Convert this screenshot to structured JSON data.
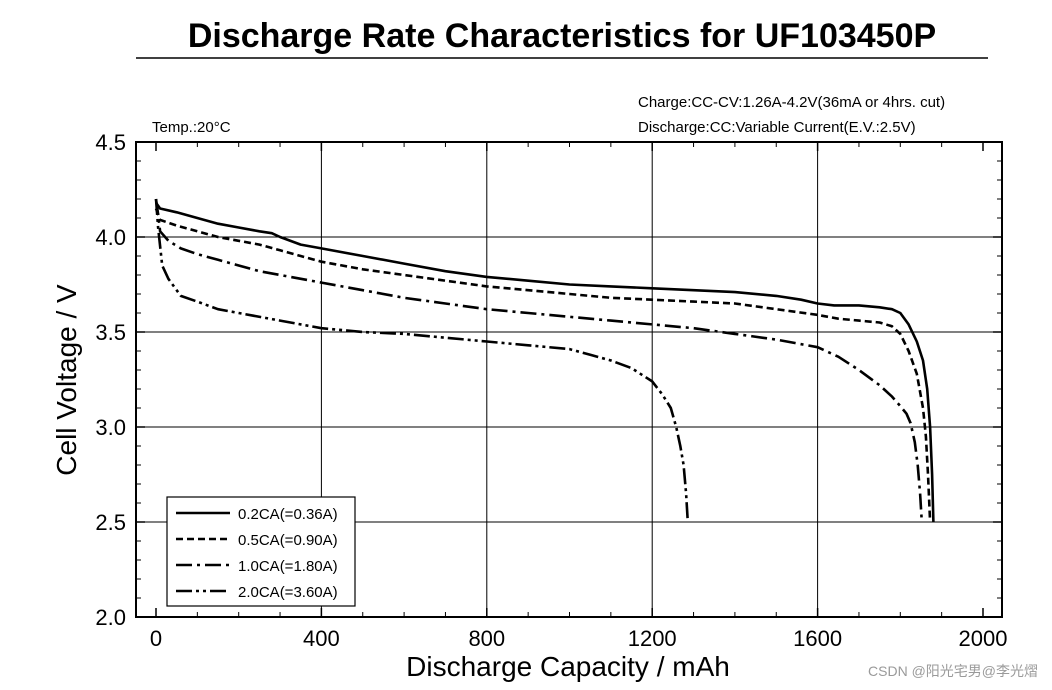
{
  "chart_data": {
    "type": "line",
    "title": "Discharge Rate Characteristics for UF103450P",
    "xlabel": "Discharge  Capacity  /  mAh",
    "ylabel": "Cell  Voltage  /  V",
    "xlim": [
      0,
      2000
    ],
    "ylim": [
      2.0,
      4.5
    ],
    "xticks": [
      0,
      400,
      800,
      1200,
      1600,
      2000
    ],
    "yticks": [
      2.0,
      2.5,
      3.0,
      3.5,
      4.0,
      4.5
    ],
    "grid": true,
    "legend_position": "bottom-left",
    "annotations": {
      "temp": "Temp.:20°C",
      "charge": "Charge:CC-CV:1.26A-4.2V(36mA or 4hrs. cut)",
      "discharge": "Discharge:CC:Variable Current(E.V.:2.5V)"
    },
    "series": [
      {
        "name": "0.2CA(=0.36A)",
        "style": "solid",
        "x": [
          0,
          10,
          50,
          100,
          150,
          200,
          250,
          280,
          300,
          350,
          400,
          500,
          600,
          700,
          800,
          900,
          1000,
          1100,
          1200,
          1300,
          1400,
          1500,
          1560,
          1600,
          1640,
          1700,
          1750,
          1780,
          1800,
          1820,
          1840,
          1855,
          1865,
          1872,
          1877,
          1880
        ],
        "y": [
          4.18,
          4.15,
          4.13,
          4.1,
          4.07,
          4.05,
          4.03,
          4.02,
          4.0,
          3.96,
          3.94,
          3.9,
          3.86,
          3.82,
          3.79,
          3.77,
          3.75,
          3.74,
          3.73,
          3.72,
          3.71,
          3.69,
          3.67,
          3.65,
          3.64,
          3.64,
          3.63,
          3.62,
          3.6,
          3.54,
          3.45,
          3.35,
          3.2,
          3.0,
          2.75,
          2.5
        ]
      },
      {
        "name": "0.5CA(=0.90A)",
        "style": "dashed",
        "x": [
          0,
          10,
          50,
          100,
          150,
          200,
          250,
          300,
          350,
          400,
          500,
          600,
          700,
          800,
          900,
          1000,
          1100,
          1200,
          1300,
          1400,
          1500,
          1600,
          1650,
          1700,
          1750,
          1780,
          1800,
          1820,
          1840,
          1855,
          1862,
          1867,
          1872
        ],
        "y": [
          4.15,
          4.09,
          4.06,
          4.03,
          4.0,
          3.98,
          3.96,
          3.93,
          3.9,
          3.87,
          3.83,
          3.8,
          3.77,
          3.74,
          3.72,
          3.7,
          3.68,
          3.67,
          3.66,
          3.65,
          3.62,
          3.59,
          3.57,
          3.56,
          3.55,
          3.53,
          3.49,
          3.4,
          3.28,
          3.1,
          2.95,
          2.75,
          2.5
        ]
      },
      {
        "name": "1.0CA(=1.80A)",
        "style": "dashdot",
        "x": [
          0,
          5,
          10,
          30,
          60,
          100,
          150,
          200,
          250,
          300,
          400,
          500,
          600,
          700,
          800,
          900,
          1000,
          1100,
          1200,
          1300,
          1400,
          1500,
          1600,
          1650,
          1700,
          1750,
          1780,
          1800,
          1815,
          1825,
          1835,
          1842,
          1848,
          1852
        ],
        "y": [
          4.2,
          4.12,
          4.03,
          3.98,
          3.94,
          3.91,
          3.88,
          3.85,
          3.82,
          3.8,
          3.76,
          3.72,
          3.68,
          3.65,
          3.62,
          3.6,
          3.58,
          3.56,
          3.54,
          3.52,
          3.49,
          3.46,
          3.42,
          3.37,
          3.3,
          3.22,
          3.16,
          3.11,
          3.07,
          3.02,
          2.92,
          2.8,
          2.65,
          2.5
        ]
      },
      {
        "name": "2.0CA(=3.60A)",
        "style": "dashdotdot",
        "x": [
          0,
          5,
          15,
          30,
          60,
          100,
          150,
          200,
          300,
          400,
          500,
          600,
          700,
          800,
          900,
          1000,
          1050,
          1100,
          1150,
          1200,
          1225,
          1245,
          1258,
          1268,
          1276,
          1282,
          1286
        ],
        "y": [
          4.2,
          4.05,
          3.85,
          3.78,
          3.69,
          3.66,
          3.62,
          3.6,
          3.56,
          3.52,
          3.5,
          3.49,
          3.47,
          3.45,
          3.43,
          3.41,
          3.38,
          3.35,
          3.31,
          3.24,
          3.17,
          3.1,
          3.0,
          2.9,
          2.8,
          2.65,
          2.5
        ]
      }
    ]
  },
  "watermark": "CSDN @阳光宅男@李光熠"
}
